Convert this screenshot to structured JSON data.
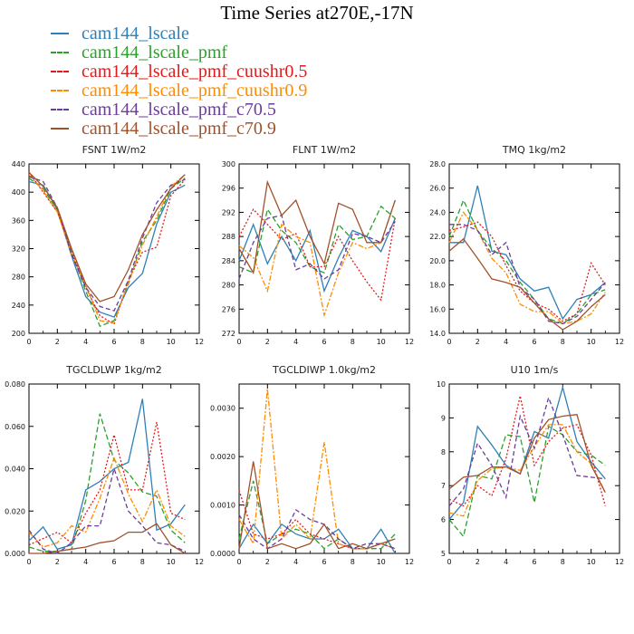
{
  "figure_title": "Time Series at270E,-17N",
  "series": [
    {
      "name": "cam144_lscale",
      "color": "#2f7fb8",
      "dash": "none"
    },
    {
      "name": "cam144_lscale_pmf",
      "color": "#2ca02c",
      "dash": "6,3"
    },
    {
      "name": "cam144_lscale_pmf_cuushr0.5",
      "color": "#e31a1c",
      "dash": "2,2"
    },
    {
      "name": "cam144_lscale_pmf_cuushr0.9",
      "color": "#ff8c00",
      "dash": "6,2,2,2"
    },
    {
      "name": "cam144_lscale_pmf_c70.5",
      "color": "#6a3d9a",
      "dash": "5,3"
    },
    {
      "name": "cam144_lscale_pmf_c70.9",
      "color": "#a0522d",
      "dash": "none"
    }
  ],
  "chart_data": [
    {
      "type": "line",
      "title": "FSNT   1W/m2",
      "x": [
        0,
        1,
        2,
        3,
        4,
        5,
        6,
        7,
        8,
        9,
        10,
        11
      ],
      "xticks": [
        0,
        2,
        4,
        6,
        8,
        10,
        12
      ],
      "xticklabels": [
        "0",
        "2",
        "4",
        "6",
        "8",
        "10",
        "12"
      ],
      "xlim": [
        0,
        12
      ],
      "ylim": [
        200,
        440
      ],
      "yticks": [
        200,
        240,
        280,
        320,
        360,
        400,
        440
      ],
      "yticklabels": [
        "200",
        "240",
        "280",
        "320",
        "360",
        "400",
        "440"
      ],
      "series": [
        {
          "name": "cam144_lscale",
          "values": [
            415,
            410,
            375,
            310,
            252,
            230,
            223,
            265,
            285,
            355,
            400,
            410
          ]
        },
        {
          "name": "cam144_lscale_pmf",
          "values": [
            420,
            405,
            375,
            315,
            260,
            210,
            218,
            270,
            330,
            360,
            405,
            420
          ]
        },
        {
          "name": "cam144_lscale_pmf_cuushr0.5",
          "values": [
            428,
            400,
            372,
            318,
            265,
            225,
            213,
            275,
            315,
            322,
            395,
            418
          ]
        },
        {
          "name": "cam144_lscale_pmf_cuushr0.9",
          "values": [
            425,
            402,
            372,
            312,
            268,
            218,
            215,
            272,
            325,
            365,
            408,
            425
          ]
        },
        {
          "name": "cam144_lscale_pmf_c70.5",
          "values": [
            422,
            415,
            378,
            312,
            265,
            238,
            232,
            275,
            335,
            385,
            410,
            418
          ]
        },
        {
          "name": "cam144_lscale_pmf_c70.9",
          "values": [
            428,
            408,
            378,
            320,
            270,
            245,
            252,
            290,
            340,
            375,
            405,
            425
          ]
        }
      ]
    },
    {
      "type": "line",
      "title": "FLNT   1W/m2",
      "x": [
        0,
        1,
        2,
        3,
        4,
        5,
        6,
        7,
        8,
        9,
        10,
        11
      ],
      "xticks": [
        0,
        2,
        4,
        6,
        8,
        10,
        12
      ],
      "xticklabels": [
        "0",
        "2",
        "4",
        "6",
        "8",
        "10",
        "12"
      ],
      "xlim": [
        0,
        12
      ],
      "ylim": [
        272,
        300
      ],
      "yticks": [
        272,
        276,
        280,
        284,
        288,
        292,
        296,
        300
      ],
      "yticklabels": [
        "272",
        "276",
        "280",
        "284",
        "288",
        "292",
        "296",
        "300"
      ],
      "series": [
        {
          "name": "cam144_lscale",
          "values": [
            284,
            290,
            283.5,
            288,
            284,
            289,
            279,
            284.5,
            289,
            288,
            285.5,
            291
          ]
        },
        {
          "name": "cam144_lscale_pmf",
          "values": [
            283,
            282,
            292.5,
            289,
            287,
            283,
            282,
            290,
            287.5,
            288,
            293,
            291
          ]
        },
        {
          "name": "cam144_lscale_pmf_cuushr0.5",
          "values": [
            288,
            292.5,
            290,
            287.5,
            288.5,
            283,
            283,
            288,
            284,
            280.5,
            277.5,
            291
          ]
        },
        {
          "name": "cam144_lscale_pmf_cuushr0.9",
          "values": [
            286.5,
            284.5,
            279,
            290,
            288,
            287,
            275,
            282,
            287,
            286,
            287,
            294
          ]
        },
        {
          "name": "cam144_lscale_pmf_c70.5",
          "values": [
            281,
            287,
            291,
            291.5,
            282.5,
            283.5,
            281,
            282.5,
            288.5,
            288,
            287,
            290.5
          ]
        },
        {
          "name": "cam144_lscale_pmf_c70.9",
          "values": [
            286,
            282,
            297,
            291.5,
            294,
            288,
            283.5,
            293.5,
            292.5,
            287,
            287,
            294
          ]
        }
      ]
    },
    {
      "type": "line",
      "title": "TMQ   1kg/m2",
      "x": [
        0,
        1,
        2,
        3,
        4,
        5,
        6,
        7,
        8,
        9,
        10,
        11
      ],
      "xticks": [
        0,
        2,
        4,
        6,
        8,
        10,
        12
      ],
      "xticklabels": [
        "0",
        "2",
        "4",
        "6",
        "8",
        "10",
        "12"
      ],
      "xlim": [
        0,
        12
      ],
      "ylim": [
        14,
        28
      ],
      "yticks": [
        14,
        16,
        18,
        20,
        22,
        24,
        26,
        28
      ],
      "yticklabels": [
        "14.0",
        "16.0",
        "18.0",
        "20.0",
        "22.0",
        "24.0",
        "26.0",
        "28.0"
      ],
      "series": [
        {
          "name": "cam144_lscale",
          "values": [
            21.5,
            21.5,
            26.2,
            20.8,
            20.5,
            18.5,
            17.5,
            17.8,
            15.2,
            16.8,
            17.2,
            18.2
          ]
        },
        {
          "name": "cam144_lscale_pmf",
          "values": [
            22,
            25,
            22.5,
            21,
            20,
            18.2,
            16.8,
            15.2,
            14.8,
            15.6,
            17.2,
            17.6
          ]
        },
        {
          "name": "cam144_lscale_pmf_cuushr0.5",
          "values": [
            22.5,
            22.8,
            23.2,
            22,
            19.6,
            17.5,
            16.5,
            16,
            15,
            15.6,
            19.8,
            18
          ]
        },
        {
          "name": "cam144_lscale_pmf_cuushr0.9",
          "values": [
            21.5,
            24,
            22.5,
            20.2,
            19,
            16.4,
            15.8,
            15.8,
            14.8,
            15,
            15.6,
            17.4
          ]
        },
        {
          "name": "cam144_lscale_pmf_c70.5",
          "values": [
            23,
            23,
            22.5,
            20.5,
            21.5,
            17.8,
            16.8,
            15,
            14.8,
            15.4,
            16.8,
            18.2
          ]
        },
        {
          "name": "cam144_lscale_pmf_c70.9",
          "values": [
            20.8,
            21.8,
            20.2,
            18.5,
            18.2,
            17.8,
            16.5,
            15.2,
            14.3,
            15,
            16.2,
            17.2
          ]
        }
      ]
    },
    {
      "type": "line",
      "title": "TGCLDLWP   1kg/m2",
      "x": [
        0,
        1,
        2,
        3,
        4,
        5,
        6,
        7,
        8,
        9,
        10,
        11
      ],
      "xticks": [
        0,
        2,
        4,
        6,
        8,
        10,
        12
      ],
      "xticklabels": [
        "0",
        "2",
        "4",
        "6",
        "8",
        "10",
        "12"
      ],
      "xlim": [
        0,
        12
      ],
      "ylim": [
        0,
        0.08
      ],
      "yticks": [
        0,
        0.02,
        0.04,
        0.06,
        0.08
      ],
      "yticklabels": [
        "0.000",
        "0.020",
        "0.040",
        "0.060",
        "0.080"
      ],
      "series": [
        {
          "name": "cam144_lscale",
          "values": [
            0.006,
            0.0125,
            0.002,
            0.004,
            0.03,
            0.034,
            0.04,
            0.043,
            0.073,
            0.011,
            0.014,
            0.023
          ]
        },
        {
          "name": "cam144_lscale_pmf",
          "values": [
            0.003,
            0.001,
            0.001,
            0.002,
            0.025,
            0.066,
            0.044,
            0.038,
            0.029,
            0.027,
            0.011,
            0.005
          ]
        },
        {
          "name": "cam144_lscale_pmf_cuushr0.5",
          "values": [
            0.004,
            0.007,
            0.01,
            0.005,
            0.019,
            0.03,
            0.056,
            0.03,
            0.03,
            0.062,
            0.019,
            0.016
          ]
        },
        {
          "name": "cam144_lscale_pmf_cuushr0.9",
          "values": [
            0.01,
            0.003,
            0.005,
            0.013,
            0.01,
            0.026,
            0.045,
            0.028,
            0.015,
            0.03,
            0.013,
            0.008
          ]
        },
        {
          "name": "cam144_lscale_pmf_c70.5",
          "values": [
            0.011,
            0.002,
            0.0,
            0.005,
            0.013,
            0.013,
            0.04,
            0.02,
            0.013,
            0.005,
            0.004,
            0.001
          ]
        },
        {
          "name": "cam144_lscale_pmf_c70.9",
          "values": [
            0.0,
            0.0,
            0.001,
            0.002,
            0.003,
            0.005,
            0.006,
            0.01,
            0.01,
            0.014,
            0.004,
            0.0
          ]
        }
      ]
    },
    {
      "type": "line",
      "title": "TGCLDIWP   1.0kg/m2",
      "x": [
        0,
        1,
        2,
        3,
        4,
        5,
        6,
        7,
        8,
        9,
        10,
        11
      ],
      "xticks": [
        0,
        2,
        4,
        6,
        8,
        10,
        12
      ],
      "xticklabels": [
        "0",
        "2",
        "4",
        "6",
        "8",
        "10",
        "12"
      ],
      "xlim": [
        0,
        12
      ],
      "ylim": [
        0,
        0.0035
      ],
      "yticks": [
        0,
        0.001,
        0.002,
        0.003
      ],
      "yticklabels": [
        "0.0000",
        "0.0010",
        "0.0020",
        "0.0030"
      ],
      "series": [
        {
          "name": "cam144_lscale",
          "values": [
            0.0001,
            0.0006,
            0.0002,
            0.0006,
            0.0004,
            0.0003,
            0.0003,
            0.0005,
            0.0001,
            0.0001,
            0.0005,
            0.0
          ]
        },
        {
          "name": "cam144_lscale_pmf",
          "values": [
            0.0003,
            0.0015,
            0.0002,
            0.0004,
            0.0005,
            0.0004,
            0.0001,
            0.0003,
            0.0001,
            0.0001,
            0.0001,
            0.0004
          ]
        },
        {
          "name": "cam144_lscale_pmf_cuushr0.5",
          "values": [
            0.0013,
            0.0004,
            0.0003,
            0.0004,
            0.0007,
            0.0004,
            0.0003,
            0.0002,
            0.0001,
            0.0001,
            0.0002,
            0.0001
          ]
        },
        {
          "name": "cam144_lscale_pmf_cuushr0.9",
          "values": [
            0.0007,
            0.0002,
            0.0034,
            0.0003,
            0.0006,
            0.0003,
            0.0023,
            0.0002,
            0.0001,
            0.0001,
            0.0002,
            0.0001
          ]
        },
        {
          "name": "cam144_lscale_pmf_c70.5",
          "values": [
            0.0008,
            0.0003,
            0.0001,
            0.0003,
            0.0009,
            0.0007,
            0.0006,
            0.0003,
            0.0001,
            0.0002,
            0.0002,
            0.0001
          ]
        },
        {
          "name": "cam144_lscale_pmf_c70.9",
          "values": [
            0.0001,
            0.0019,
            0.0001,
            0.0002,
            0.0001,
            0.0002,
            0.0006,
            0.0001,
            0.0002,
            0.0001,
            0.0002,
            0.0003
          ]
        }
      ]
    },
    {
      "type": "line",
      "title": "U10   1m/s",
      "x": [
        0,
        1,
        2,
        3,
        4,
        5,
        6,
        7,
        8,
        9,
        10,
        11
      ],
      "xticks": [
        0,
        2,
        4,
        6,
        8,
        10,
        12
      ],
      "xticklabels": [
        "0",
        "2",
        "4",
        "6",
        "8",
        "10",
        "12"
      ],
      "xlim": [
        0,
        12
      ],
      "ylim": [
        5,
        10
      ],
      "yticks": [
        5,
        6,
        7,
        8,
        9,
        10
      ],
      "yticklabels": [
        "5",
        "6",
        "7",
        "8",
        "9",
        "10"
      ],
      "series": [
        {
          "name": "cam144_lscale",
          "values": [
            6.0,
            6.5,
            8.75,
            8.2,
            7.6,
            7.35,
            8.6,
            8.4,
            9.9,
            8.3,
            7.7,
            7.2
          ]
        },
        {
          "name": "cam144_lscale_pmf",
          "values": [
            6.0,
            5.5,
            7.3,
            7.2,
            8.5,
            8.45,
            6.5,
            8.75,
            8.5,
            8.0,
            7.9,
            7.6
          ]
        },
        {
          "name": "cam144_lscale_pmf_cuushr0.5",
          "values": [
            6.6,
            6.4,
            7.0,
            6.7,
            7.8,
            9.65,
            7.6,
            8.3,
            8.7,
            8.8,
            7.9,
            6.4
          ]
        },
        {
          "name": "cam144_lscale_pmf_cuushr0.9",
          "values": [
            6.2,
            6.1,
            7.15,
            7.5,
            7.55,
            7.45,
            8.15,
            8.8,
            8.8,
            8.0,
            7.65,
            6.8
          ]
        },
        {
          "name": "cam144_lscale_pmf_c70.5",
          "values": [
            6.4,
            6.9,
            8.25,
            7.6,
            6.65,
            9.05,
            8.1,
            9.6,
            8.5,
            7.3,
            7.25,
            7.2
          ]
        },
        {
          "name": "cam144_lscale_pmf_c70.9",
          "values": [
            6.9,
            7.25,
            7.3,
            7.55,
            7.55,
            7.35,
            8.4,
            8.95,
            9.05,
            9.1,
            7.6,
            6.8
          ]
        }
      ]
    }
  ]
}
